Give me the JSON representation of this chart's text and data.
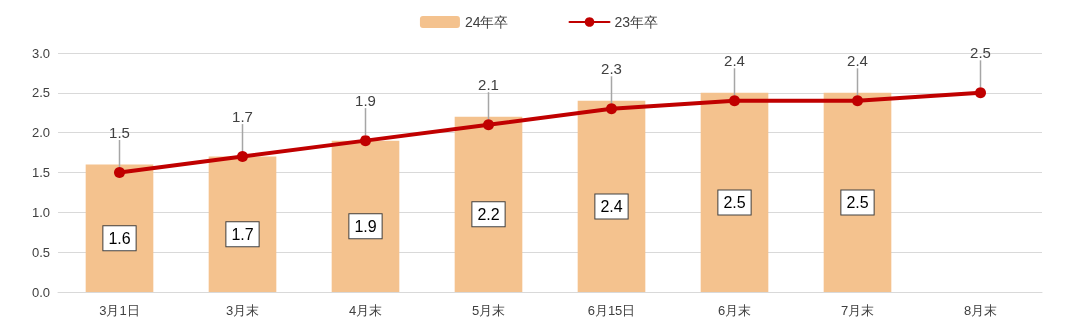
{
  "chart_data": {
    "type": "bar",
    "categories": [
      "3月1日",
      "3月末",
      "4月末",
      "5月末",
      "6月15日",
      "6月末",
      "7月末",
      "8月末"
    ],
    "series": [
      {
        "name": "24年卒",
        "color": "#f4c28e",
        "values": [
          1.6,
          1.7,
          1.9,
          2.2,
          2.4,
          2.5,
          2.5,
          null
        ]
      },
      {
        "name": "23年卒",
        "type": "line",
        "color": "#c00000",
        "values": [
          1.5,
          1.7,
          1.9,
          2.1,
          2.3,
          2.4,
          2.4,
          2.5
        ]
      }
    ],
    "ylim": [
      0,
      3
    ],
    "yticks": [
      {
        "value": 0,
        "label": "0.0"
      },
      {
        "value": 0.5,
        "label": "0.5"
      },
      {
        "value": 1,
        "label": "1.0"
      },
      {
        "value": 1.5,
        "label": "1.5"
      },
      {
        "value": 2,
        "label": "2.0"
      },
      {
        "value": 2.5,
        "label": "2.5"
      },
      {
        "value": 3,
        "label": "3.0"
      }
    ],
    "grid": "y",
    "legend": "top",
    "marker": "circle",
    "line_style": "solid",
    "data_labels": true
  }
}
